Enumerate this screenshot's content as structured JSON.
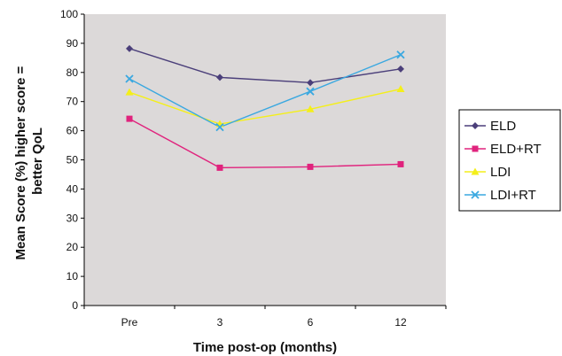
{
  "chart_data": {
    "type": "line",
    "title": "",
    "xlabel": "Time post-op (months)",
    "ylabel_lines": [
      "Mean Score (%) higher score =",
      "better QoL"
    ],
    "categories": [
      "Pre",
      "3",
      "6",
      "12"
    ],
    "ylim": [
      0,
      100
    ],
    "yticks": [
      0,
      10,
      20,
      30,
      40,
      50,
      60,
      70,
      80,
      90,
      100
    ],
    "grid": false,
    "plot_background": "#dcd9d9",
    "legend_position": "right",
    "series": [
      {
        "name": "ELD",
        "values": [
          88.2,
          78.3,
          76.5,
          81.2
        ],
        "color": "#4b3f7a",
        "marker": "diamond"
      },
      {
        "name": "ELD+RT",
        "values": [
          64.1,
          47.3,
          47.6,
          48.5
        ],
        "color": "#e0237d",
        "marker": "square"
      },
      {
        "name": "LDI",
        "values": [
          73.2,
          62.3,
          67.4,
          74.3
        ],
        "color": "#f4ef1a",
        "marker": "triangle"
      },
      {
        "name": "LDI+RT",
        "values": [
          77.8,
          61.2,
          73.5,
          86.1
        ],
        "color": "#3aa8e0",
        "marker": "x"
      }
    ]
  }
}
